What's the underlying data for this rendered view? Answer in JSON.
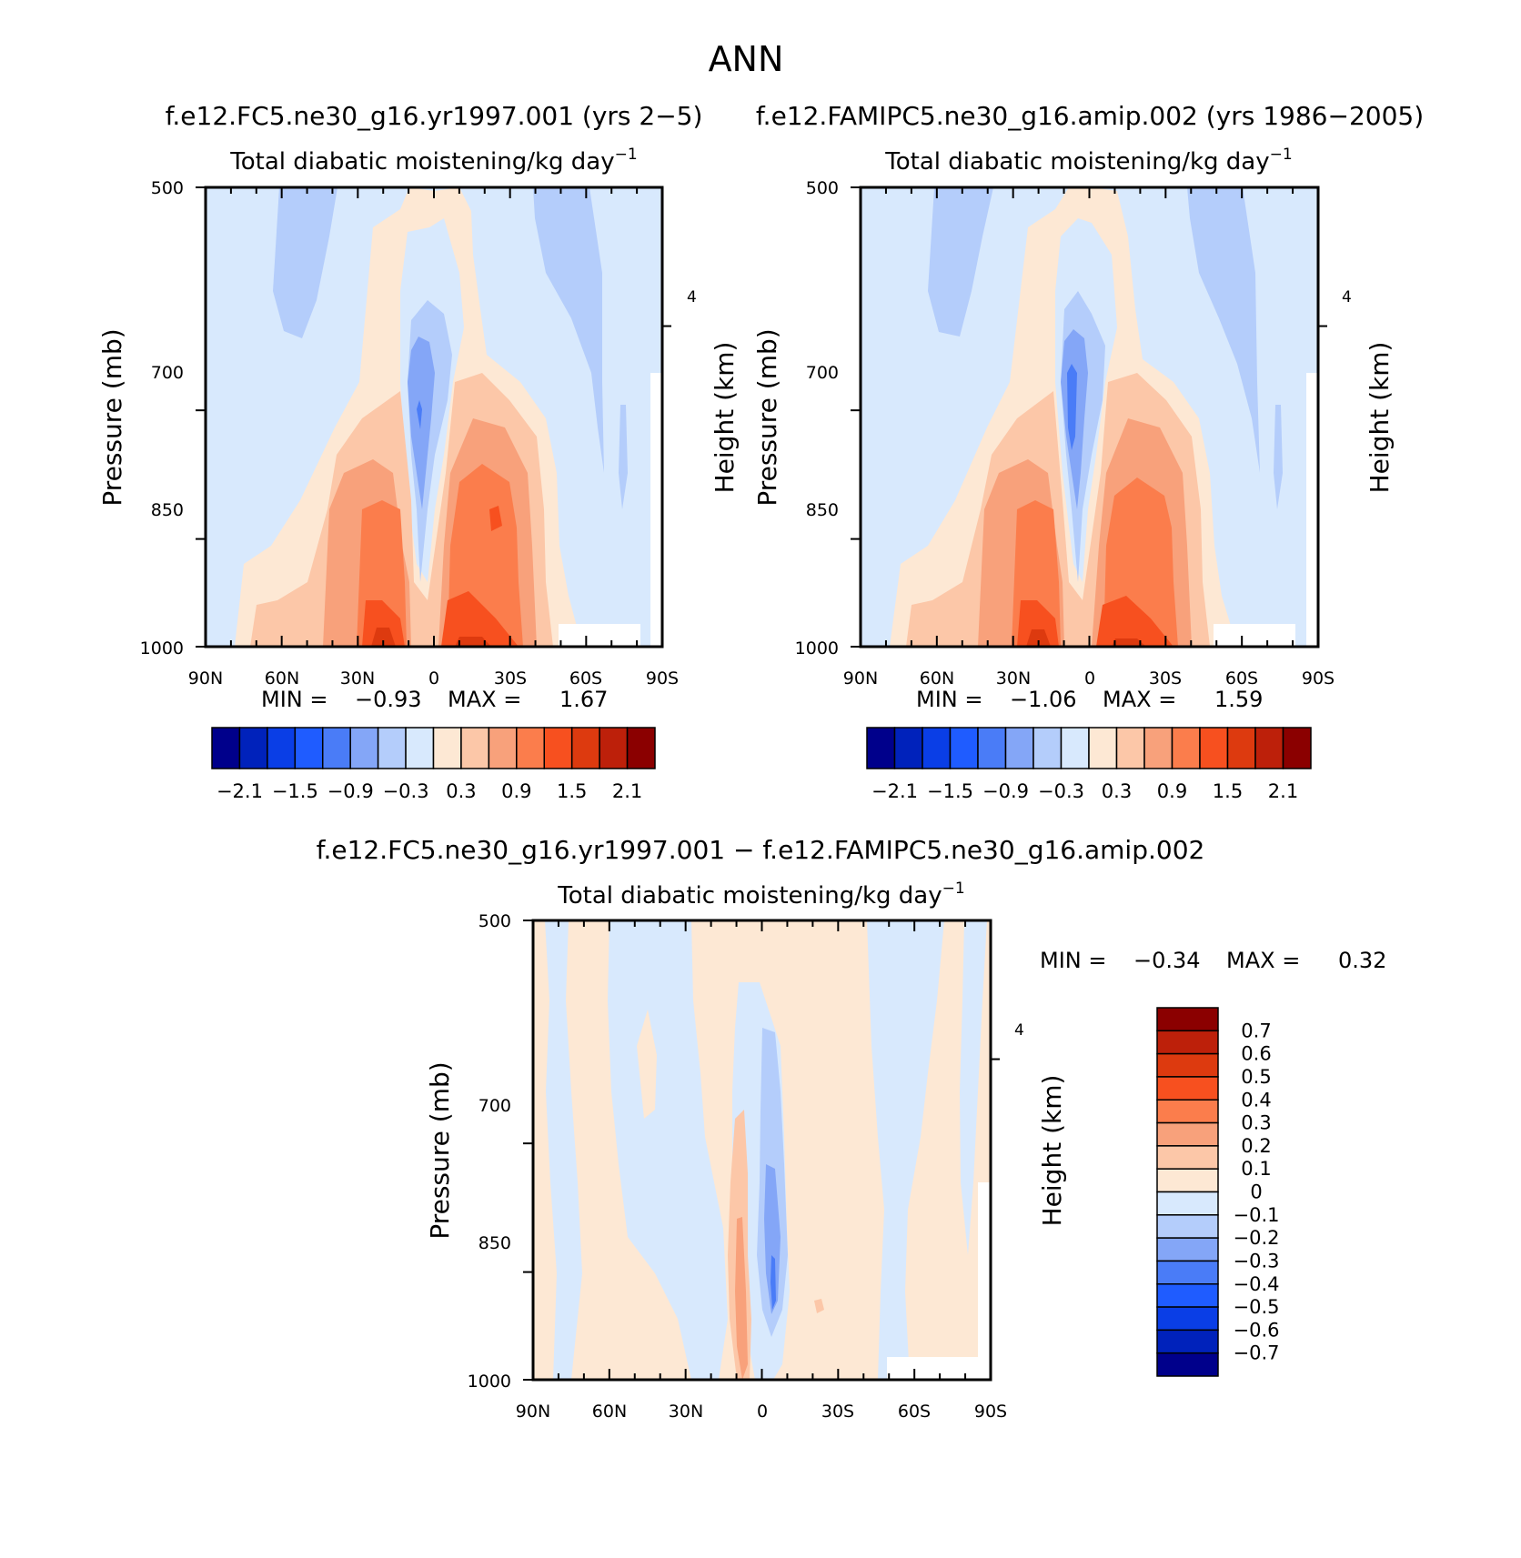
{
  "figure": {
    "season": "ANN"
  },
  "chart_data": [
    {
      "type": "contour",
      "panel": "top-left",
      "case_title": "f.e12.FC5.ne30_g16.yr1997.001 (yrs 2−5)",
      "title": "Total diabatic moistening/kg day",
      "title_superscript": "−1",
      "xlabel": "",
      "ylabel": "Pressure (mb)",
      "y2label": "Height (km)",
      "xticks": [
        "90N",
        "60N",
        "30N",
        "0",
        "30S",
        "60S",
        "90S"
      ],
      "yticks": [
        "500",
        "700",
        "850",
        "1000"
      ],
      "y2ticks": [
        "4"
      ],
      "xlim": [
        90,
        -90
      ],
      "ylim": [
        1000,
        500
      ],
      "stats": {
        "min_label": "MIN =",
        "min": "−0.93",
        "max_label": "MAX =",
        "max": "1.67"
      },
      "colorbar": {
        "orientation": "horizontal",
        "levels": [
          -2.1,
          -1.8,
          -1.5,
          -1.2,
          -0.9,
          -0.6,
          -0.3,
          0,
          0.3,
          0.6,
          0.9,
          1.2,
          1.5,
          1.8,
          2.1
        ],
        "labels": [
          "−2.1",
          "−1.5",
          "−0.9",
          "−0.3",
          "0.3",
          "0.9",
          "1.5",
          "2.1"
        ]
      }
    },
    {
      "type": "contour",
      "panel": "top-right",
      "case_title": "f.e12.FAMIPC5.ne30_g16.amip.002 (yrs 1986−2005)",
      "title": "Total diabatic moistening/kg day",
      "title_superscript": "−1",
      "xlabel": "",
      "ylabel": "Pressure (mb)",
      "y2label": "Height (km)",
      "xticks": [
        "90N",
        "60N",
        "30N",
        "0",
        "30S",
        "60S",
        "90S"
      ],
      "yticks": [
        "500",
        "700",
        "850",
        "1000"
      ],
      "y2ticks": [
        "4"
      ],
      "xlim": [
        90,
        -90
      ],
      "ylim": [
        1000,
        500
      ],
      "stats": {
        "min_label": "MIN =",
        "min": "−1.06",
        "max_label": "MAX =",
        "max": "1.59"
      },
      "colorbar": {
        "orientation": "horizontal",
        "levels": [
          -2.1,
          -1.8,
          -1.5,
          -1.2,
          -0.9,
          -0.6,
          -0.3,
          0,
          0.3,
          0.6,
          0.9,
          1.2,
          1.5,
          1.8,
          2.1
        ],
        "labels": [
          "−2.1",
          "−1.5",
          "−0.9",
          "−0.3",
          "0.3",
          "0.9",
          "1.5",
          "2.1"
        ]
      }
    },
    {
      "type": "contour",
      "panel": "bottom-difference",
      "case_title": "f.e12.FC5.ne30_g16.yr1997.001 − f.e12.FAMIPC5.ne30_g16.amip.002",
      "title": "Total diabatic moistening/kg day",
      "title_superscript": "−1",
      "xlabel": "",
      "ylabel": "Pressure (mb)",
      "y2label": "Height (km)",
      "xticks": [
        "90N",
        "60N",
        "30N",
        "0",
        "30S",
        "60S",
        "90S"
      ],
      "yticks": [
        "500",
        "700",
        "850",
        "1000"
      ],
      "y2ticks": [
        "4"
      ],
      "xlim": [
        90,
        -90
      ],
      "ylim": [
        1000,
        500
      ],
      "stats": {
        "min_label": "MIN =",
        "min": "−0.34",
        "max_label": "MAX =",
        "max": "0.32"
      },
      "colorbar": {
        "orientation": "vertical",
        "levels": [
          -0.7,
          -0.6,
          -0.5,
          -0.4,
          -0.3,
          -0.2,
          -0.1,
          0,
          0.1,
          0.2,
          0.3,
          0.4,
          0.5,
          0.6,
          0.7
        ],
        "labels": [
          "0.7",
          "0.6",
          "0.5",
          "0.4",
          "0.3",
          "0.2",
          "0.1",
          "0",
          "−0.1",
          "−0.2",
          "−0.3",
          "−0.4",
          "−0.5",
          "−0.6",
          "−0.7"
        ]
      }
    }
  ],
  "palette": [
    "#00008b",
    "#0022bb",
    "#0a3ee6",
    "#1f5cff",
    "#4a7cf7",
    "#84a6f7",
    "#b4cdfb",
    "#d8e9fd",
    "#fde8d4",
    "#fcc7a8",
    "#f8a17b",
    "#fb7d4c",
    "#f7501f",
    "#dd3a0f",
    "#bd200a",
    "#8b0000"
  ]
}
